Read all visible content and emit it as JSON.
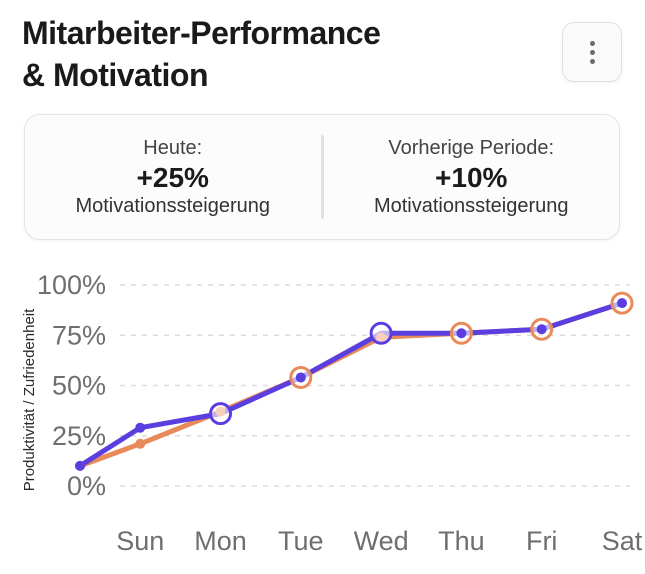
{
  "header": {
    "title_line1": "Mitarbeiter-Performance",
    "title_line2": "& Motivation",
    "menu_icon": "kebab-menu-icon"
  },
  "stats": [
    {
      "label": "Heute:",
      "value": "+25%",
      "sub": "Motivationssteigerung"
    },
    {
      "label": "Vorherige Periode:",
      "value": "+10%",
      "sub": "Motivationssteigerung"
    }
  ],
  "chart_data": {
    "type": "line",
    "categories": [
      "Sun",
      "Mon",
      "Tue",
      "Wed",
      "Thu",
      "Fri",
      "Sat"
    ],
    "x": [
      0,
      0.75,
      1.75,
      2.75,
      3.75,
      4.75,
      5.75,
      6.75
    ],
    "ylabel": "Produktivität / Zufriedenheit",
    "yticks": [
      "0%",
      "25%",
      "50%",
      "75%",
      "100%"
    ],
    "ylim": [
      0,
      100
    ],
    "grid": true,
    "series": [
      {
        "color": "#5b3ee0",
        "values": [
          10,
          29,
          36,
          54,
          76,
          76,
          78,
          91
        ],
        "highlighted": [
          2,
          4
        ]
      },
      {
        "color": "#e98a5b",
        "values": [
          10,
          21,
          37,
          54,
          74,
          76,
          78,
          91
        ],
        "highlighted": [
          3,
          5,
          6,
          7
        ]
      }
    ]
  }
}
